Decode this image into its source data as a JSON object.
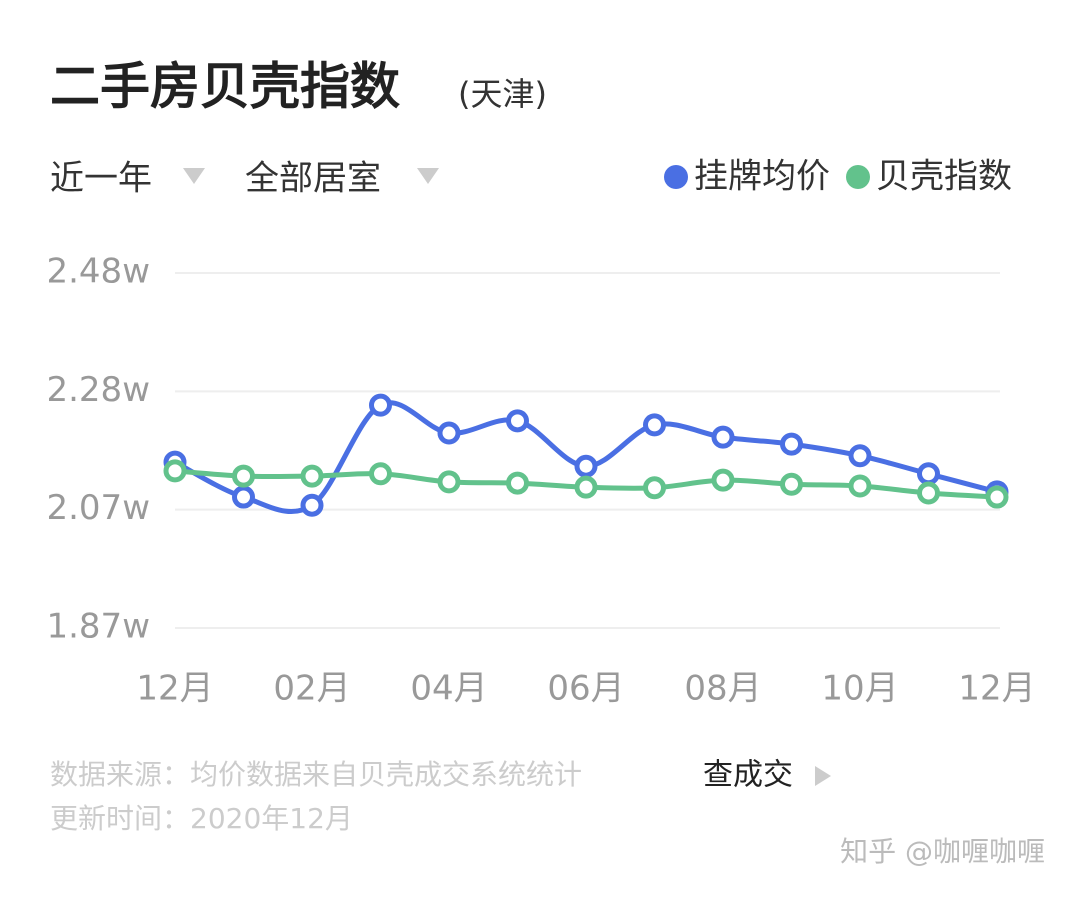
{
  "chart_data": {
    "type": "line",
    "title": "二手房贝壳指数",
    "subtitle": "(天津)",
    "categories": [
      "12月",
      null,
      "02月",
      null,
      "04月",
      null,
      "06月",
      null,
      "08月",
      null,
      "10月",
      null,
      "12月"
    ],
    "series": [
      {
        "name": "挂牌均价",
        "color": "#4a6fe3",
        "values": [
          21550,
          20950,
          20810,
          22530,
          22050,
          22260,
          21480,
          22190,
          21980,
          21860,
          21660,
          21350,
          21040
        ]
      },
      {
        "name": "贝壳指数",
        "color": "#62c28c",
        "values": [
          21400,
          21310,
          21310,
          21350,
          21210,
          21190,
          21120,
          21110,
          21240,
          21170,
          21140,
          21020,
          20950
        ]
      }
    ],
    "ylim": [
      18700,
      24800
    ],
    "yticks": [
      {
        "value": 24800,
        "label": "2.48w"
      },
      {
        "value": 22767,
        "label": "2.28w"
      },
      {
        "value": 20733,
        "label": "2.07w"
      },
      {
        "value": 18700,
        "label": "1.87w"
      }
    ],
    "grid": true,
    "smooth": true
  },
  "filters": [
    "近一年",
    "全部居室"
  ],
  "footer": {
    "source": "数据来源：均价数据来自贝壳成交系统统计",
    "link": "查成交",
    "updated": "更新时间：2020年12月"
  },
  "watermark": "知乎 @咖喱咖喱"
}
